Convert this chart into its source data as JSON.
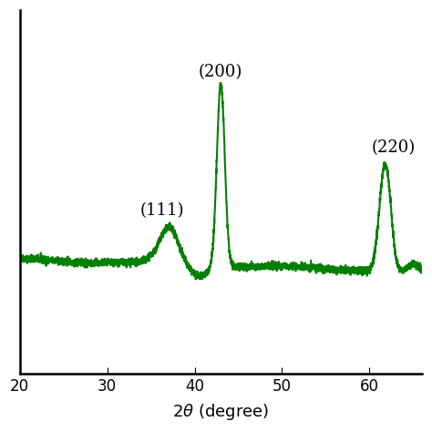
{
  "line_color": "#008000",
  "line_width": 1.5,
  "xlim": [
    20,
    66
  ],
  "xticks": [
    20,
    30,
    40,
    50,
    60
  ],
  "ylim_data_min": 0.0,
  "ylim_data_max": 1.0,
  "annotations": [
    {
      "text": "(111)",
      "x": 36.8,
      "fontsize": 13
    },
    {
      "text": "(200)",
      "x": 43.0,
      "fontsize": 13
    },
    {
      "text": "(220)",
      "x": 62.0,
      "fontsize": 13
    }
  ],
  "background_color": "#ffffff",
  "noise_seed": 42,
  "tick_fontsize": 12,
  "xlabel_fontsize": 13
}
